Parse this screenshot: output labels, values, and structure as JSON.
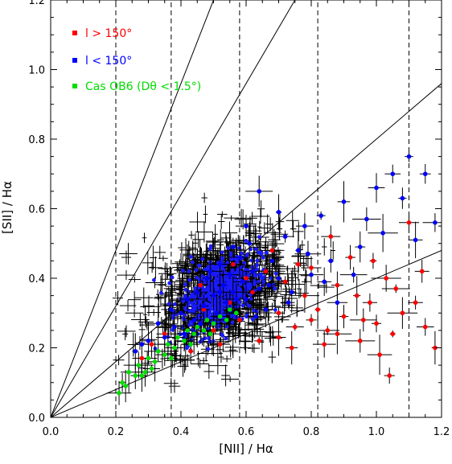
{
  "chart_data": {
    "type": "scatter",
    "xlabel": "[NII] / Hα",
    "ylabel": "[SII] / Hα",
    "xlim": [
      0.0,
      1.2
    ],
    "ylim": [
      0.0,
      1.2
    ],
    "x_ticks": [
      "0.0",
      "0.2",
      "0.4",
      "0.6",
      "0.8",
      "1.0",
      "1.2"
    ],
    "y_ticks": [
      "0.0",
      "0.2",
      "0.4",
      "0.6",
      "0.8",
      "1.0",
      "1.2"
    ],
    "grid": false,
    "legend_position": "top-left",
    "series": [
      {
        "name": "l > 150°",
        "color": "#ff0000",
        "points": [
          [
            0.62,
            0.36
          ],
          [
            0.66,
            0.42
          ],
          [
            0.7,
            0.3
          ],
          [
            0.72,
            0.39
          ],
          [
            0.75,
            0.26
          ],
          [
            0.78,
            0.35
          ],
          [
            0.8,
            0.43
          ],
          [
            0.82,
            0.31
          ],
          [
            0.85,
            0.25
          ],
          [
            0.88,
            0.38
          ],
          [
            0.9,
            0.29
          ],
          [
            0.92,
            0.46
          ],
          [
            0.95,
            0.22
          ],
          [
            0.98,
            0.33
          ],
          [
            1.0,
            0.27
          ],
          [
            1.03,
            0.4
          ],
          [
            1.05,
            0.24
          ],
          [
            1.08,
            0.3
          ],
          [
            1.1,
            0.56
          ],
          [
            1.12,
            0.33
          ],
          [
            1.15,
            0.26
          ],
          [
            1.18,
            0.2
          ],
          [
            0.58,
            0.28
          ],
          [
            0.55,
            0.33
          ],
          [
            0.64,
            0.22
          ],
          [
            0.68,
            0.48
          ],
          [
            0.74,
            0.2
          ],
          [
            0.86,
            0.52
          ],
          [
            0.94,
            0.35
          ],
          [
            1.01,
            0.18
          ],
          [
            1.04,
            0.12
          ],
          [
            0.5,
            0.25
          ],
          [
            0.47,
            0.31
          ],
          [
            0.52,
            0.21
          ],
          [
            0.6,
            0.4
          ],
          [
            0.76,
            0.44
          ],
          [
            0.84,
            0.21
          ],
          [
            0.96,
            0.28
          ],
          [
            1.06,
            0.37
          ],
          [
            1.14,
            0.42
          ],
          [
            0.56,
            0.44
          ],
          [
            0.7,
            0.23
          ],
          [
            0.8,
            0.28
          ],
          [
            0.88,
            0.24
          ],
          [
            0.99,
            0.45
          ],
          [
            0.31,
            0.21
          ],
          [
            0.28,
            0.17
          ],
          [
            0.35,
            0.24
          ],
          [
            0.43,
            0.19
          ],
          [
            0.46,
            0.38
          ]
        ]
      },
      {
        "name": "l < 150°",
        "color": "#0000ff",
        "points": [
          [
            0.38,
            0.26
          ],
          [
            0.4,
            0.3
          ],
          [
            0.42,
            0.34
          ],
          [
            0.44,
            0.28
          ],
          [
            0.45,
            0.36
          ],
          [
            0.47,
            0.32
          ],
          [
            0.48,
            0.4
          ],
          [
            0.5,
            0.35
          ],
          [
            0.51,
            0.3
          ],
          [
            0.52,
            0.44
          ],
          [
            0.53,
            0.38
          ],
          [
            0.54,
            0.33
          ],
          [
            0.55,
            0.41
          ],
          [
            0.56,
            0.36
          ],
          [
            0.57,
            0.3
          ],
          [
            0.58,
            0.46
          ],
          [
            0.59,
            0.39
          ],
          [
            0.6,
            0.34
          ],
          [
            0.61,
            0.5
          ],
          [
            0.62,
            0.42
          ],
          [
            0.64,
            0.37
          ],
          [
            0.66,
            0.31
          ],
          [
            0.68,
            0.45
          ],
          [
            0.7,
            0.4
          ],
          [
            0.72,
            0.52
          ],
          [
            0.74,
            0.36
          ],
          [
            0.76,
            0.48
          ],
          [
            0.78,
            0.55
          ],
          [
            0.8,
            0.41
          ],
          [
            0.83,
            0.58
          ],
          [
            0.86,
            0.45
          ],
          [
            0.9,
            0.62
          ],
          [
            0.95,
            0.49
          ],
          [
            1.0,
            0.66
          ],
          [
            1.05,
            0.7
          ],
          [
            1.1,
            0.75
          ],
          [
            1.15,
            0.7
          ],
          [
            1.18,
            0.56
          ],
          [
            1.12,
            0.51
          ],
          [
            0.88,
            0.33
          ],
          [
            0.64,
            0.65
          ],
          [
            0.7,
            0.59
          ],
          [
            0.6,
            0.55
          ],
          [
            0.56,
            0.49
          ],
          [
            0.35,
            0.23
          ],
          [
            0.33,
            0.27
          ],
          [
            0.3,
            0.22
          ],
          [
            0.37,
            0.31
          ],
          [
            0.41,
            0.24
          ],
          [
            0.46,
            0.27
          ],
          [
            0.49,
            0.42
          ],
          [
            0.52,
            0.36
          ],
          [
            0.54,
            0.28
          ],
          [
            0.57,
            0.34
          ],
          [
            0.63,
            0.29
          ],
          [
            0.67,
            0.38
          ],
          [
            0.73,
            0.33
          ],
          [
            0.79,
            0.47
          ],
          [
            0.84,
            0.39
          ],
          [
            0.93,
            0.41
          ],
          [
            0.97,
            0.57
          ],
          [
            1.02,
            0.53
          ],
          [
            1.08,
            0.63
          ],
          [
            0.26,
            0.19
          ],
          [
            0.28,
            0.21
          ]
        ]
      },
      {
        "name": "Cas OB6 (D$_θ$ < 1.5°)",
        "color": "#00dd00",
        "points": [
          [
            0.21,
            0.07
          ],
          [
            0.22,
            0.1
          ],
          [
            0.24,
            0.13
          ],
          [
            0.26,
            0.12
          ],
          [
            0.27,
            0.15
          ],
          [
            0.29,
            0.13
          ],
          [
            0.3,
            0.17
          ],
          [
            0.32,
            0.16
          ],
          [
            0.33,
            0.19
          ],
          [
            0.35,
            0.18
          ],
          [
            0.36,
            0.21
          ],
          [
            0.38,
            0.2
          ],
          [
            0.39,
            0.23
          ],
          [
            0.41,
            0.22
          ],
          [
            0.42,
            0.25
          ],
          [
            0.44,
            0.24
          ],
          [
            0.45,
            0.26
          ],
          [
            0.47,
            0.25
          ],
          [
            0.48,
            0.28
          ],
          [
            0.5,
            0.27
          ],
          [
            0.52,
            0.29
          ],
          [
            0.54,
            0.28
          ],
          [
            0.55,
            0.31
          ],
          [
            0.57,
            0.3
          ],
          [
            0.28,
            0.12
          ],
          [
            0.23,
            0.09
          ],
          [
            0.31,
            0.14
          ],
          [
            0.37,
            0.17
          ],
          [
            0.43,
            0.21
          ],
          [
            0.49,
            0.24
          ]
        ]
      }
    ],
    "unlabeled_dense_points": {
      "color": "#000000",
      "note_center": [
        0.52,
        0.36
      ]
    },
    "reference_lines": {
      "solid_slopes": [
        2.4,
        1.6,
        0.8,
        0.4
      ],
      "dashed_x": [
        0.2,
        0.37,
        0.58,
        0.82,
        1.1
      ]
    }
  },
  "legend": [
    {
      "label": "l > 150°",
      "color": "#ff0000"
    },
    {
      "label": "l < 150°",
      "color": "#0000ff"
    },
    {
      "label": "Cas OB6 (Dθ < 1.5°)",
      "color": "#00dd00"
    }
  ]
}
